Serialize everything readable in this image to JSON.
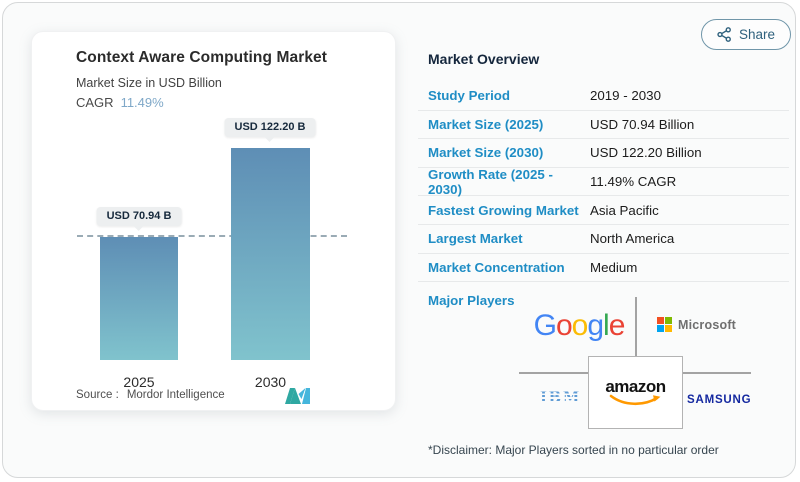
{
  "header": {
    "share_label": "Share"
  },
  "chart_card": {
    "title": "Context Aware Computing Market",
    "subtitle": "Market Size in USD Billion",
    "cagr_label": "CAGR",
    "cagr_value": "11.49%",
    "source_label": "Source :",
    "source_brand": "Mordor Intelligence"
  },
  "chart_data": {
    "type": "bar",
    "title": "Context Aware Computing Market",
    "units": "USD Billion",
    "categories": [
      "2025",
      "2030"
    ],
    "values": [
      70.94,
      122.2
    ],
    "value_labels": [
      "USD 70.94 B",
      "USD 122.20 B"
    ],
    "cagr_percent": 11.49,
    "ylim": [
      0,
      140
    ],
    "grid": false,
    "reference_line": 70.94,
    "bar_gradient_top": "#5e8eb5",
    "bar_gradient_bottom": "#80c3cd"
  },
  "overview": {
    "title": "Market Overview",
    "rows": [
      {
        "label": "Study Period",
        "value": "2019 - 2030"
      },
      {
        "label": "Market Size (2025)",
        "value": "USD 70.94 Billion"
      },
      {
        "label": "Market Size (2030)",
        "value": "USD 122.20 Billion"
      },
      {
        "label": "Growth Rate (2025 - 2030)",
        "value": "11.49% CAGR"
      },
      {
        "label": "Fastest Growing Market",
        "value": "Asia Pacific"
      },
      {
        "label": "Largest Market",
        "value": "North America"
      },
      {
        "label": "Market Concentration",
        "value": "Medium"
      }
    ],
    "major_players_label": "Major Players",
    "disclaimer": "*Disclaimer: Major Players sorted in no particular order"
  },
  "players": {
    "google": "Google",
    "microsoft": "Microsoft",
    "amazon": "amazon",
    "ibm": "IBM",
    "samsung": "SAMSUNG"
  },
  "colors": {
    "accent_blue": "#1f8dc5",
    "heading_navy": "#14263c",
    "cagr_blue": "#7fa8c8",
    "share_teal": "#2f617d",
    "divider_gray": "#e7e9ea",
    "connector_gray": "#a3a3a3",
    "badge_bg": "#edeff0",
    "google_letter_colors": [
      "#4285F4",
      "#EA4335",
      "#FBBC05",
      "#4285F4",
      "#34A853",
      "#EA4335"
    ],
    "microsoft_squares": [
      "#F25022",
      "#7FBA00",
      "#00A4EF",
      "#FFB900"
    ],
    "microsoft_text": "#6f6f6f",
    "ibm_blue": "#5f9bd4",
    "samsung_blue": "#1428a0",
    "amazon_smile_orange": "#FF9900",
    "mordor_teal": "#2fa8a2",
    "mordor_blue": "#45b6dc"
  }
}
